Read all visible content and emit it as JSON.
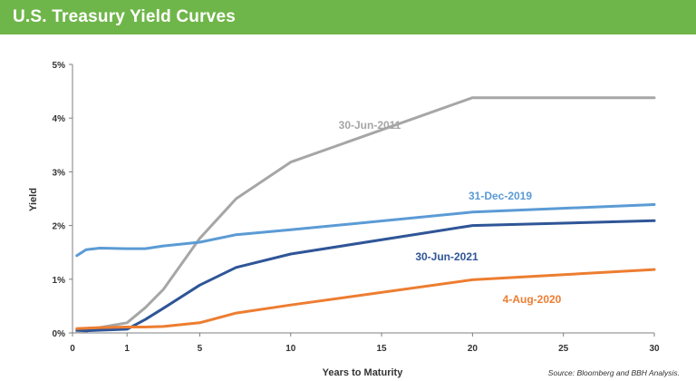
{
  "title": "U.S. Treasury Yield Curves",
  "source": "Source: Bloomberg and BBH Analysis.",
  "chart_data": {
    "type": "line",
    "title": "U.S. Treasury Yield Curves",
    "xlabel": "Years to Maturity",
    "ylabel": "Yield",
    "xlim": [
      0,
      30
    ],
    "ylim": [
      0,
      5
    ],
    "x_ticks": [
      {
        "label": "0",
        "value": 0
      },
      {
        "label": "1",
        "value": 3
      },
      {
        "label": "5",
        "value": 7
      },
      {
        "label": "10",
        "value": 12
      },
      {
        "label": "15",
        "value": 17
      },
      {
        "label": "20",
        "value": 22
      },
      {
        "label": "25",
        "value": 27
      },
      {
        "label": "30",
        "value": 32
      }
    ],
    "y_ticks": [
      "0%",
      "1%",
      "2%",
      "3%",
      "4%",
      "5%"
    ],
    "grid": false,
    "legend": "inline labels",
    "series": [
      {
        "name": "30-Jun-2011",
        "color": "#a6a6a6",
        "x": [
          0.08,
          0.25,
          0.5,
          1,
          2,
          3,
          5,
          7,
          10,
          20,
          30
        ],
        "y": [
          0.02,
          0.03,
          0.1,
          0.19,
          0.47,
          0.81,
          1.76,
          2.5,
          3.18,
          4.38,
          4.38
        ]
      },
      {
        "name": "31-Dec-2019",
        "color": "#5b9bd5",
        "x": [
          0.08,
          0.25,
          0.5,
          1,
          2,
          3,
          5,
          7,
          10,
          20,
          30
        ],
        "y": [
          1.44,
          1.55,
          1.58,
          1.57,
          1.57,
          1.62,
          1.69,
          1.83,
          1.92,
          2.25,
          2.39
        ]
      },
      {
        "name": "30-Jun-2021",
        "color": "#2f5597",
        "x": [
          0.08,
          0.25,
          0.5,
          1,
          2,
          3,
          5,
          7,
          10,
          20,
          30
        ],
        "y": [
          0.05,
          0.04,
          0.05,
          0.07,
          0.25,
          0.46,
          0.89,
          1.22,
          1.47,
          2.0,
          2.09
        ]
      },
      {
        "name": "4-Aug-2020",
        "color": "#ed7d31",
        "x": [
          0.08,
          0.25,
          0.5,
          1,
          2,
          3,
          5,
          7,
          10,
          20,
          30
        ],
        "y": [
          0.08,
          0.09,
          0.1,
          0.11,
          0.11,
          0.12,
          0.19,
          0.37,
          0.52,
          0.99,
          1.18
        ]
      }
    ]
  }
}
